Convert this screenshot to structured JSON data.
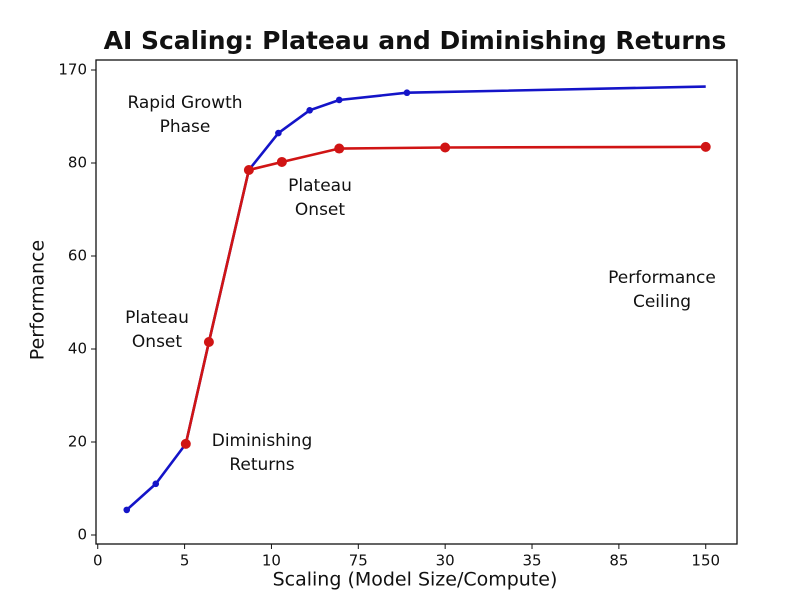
{
  "chart_data": {
    "type": "line",
    "title": "AI Scaling: Plateau and Diminishing Returns",
    "title_color": "#1c1ccc",
    "xlabel": "Scaling (Model Size/Compute)",
    "ylabel": "Performance",
    "xlim": [
      -0.1,
      36.8
    ],
    "xticks": [
      0,
      5,
      10,
      {
        "value": 15,
        "label": "75"
      },
      {
        "value": 20,
        "label": "30"
      },
      {
        "value": 25,
        "label": "35"
      },
      {
        "value": 30,
        "label": "85"
      },
      {
        "value": 35,
        "label": "150"
      }
    ],
    "ylim": [
      -2,
      181
    ],
    "yticks": [
      0,
      20,
      40,
      60,
      80,
      170
    ],
    "grid": false,
    "series": [
      {
        "x": [
          1.67,
          3.34,
          5.07,
          6.4,
          8.7,
          10.4,
          12.2,
          13.9,
          17.8,
          35
        ],
        "values": [
          5.4,
          11,
          19.6,
          41.5,
          78.5,
          109,
          131,
          141,
          148,
          154
        ],
        "color": "#1414c8"
      },
      {
        "x": [
          5.07,
          6.4,
          8.7,
          10.6,
          13.9,
          20,
          35
        ],
        "values": [
          19.6,
          41.5,
          78.5,
          81,
          94,
          95,
          95.6
        ],
        "color": "#d01414"
      }
    ],
    "annotations": [
      {
        "lines": [
          "Rapid Growth",
          "Phase"
        ]
      },
      {
        "lines": [
          "Plateau",
          "Onset"
        ]
      },
      {
        "lines": [
          "Plateau",
          "Onset"
        ]
      },
      {
        "lines": [
          "Diminishing",
          "Returns"
        ]
      },
      {
        "lines": [
          "Performance",
          "Ceiling"
        ]
      }
    ]
  }
}
